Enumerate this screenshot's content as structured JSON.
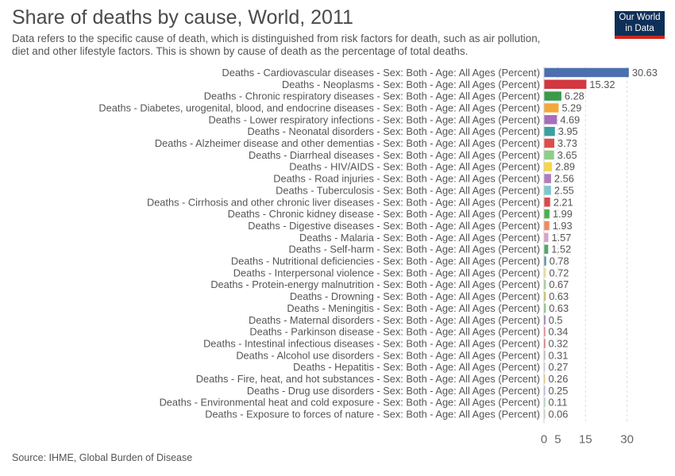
{
  "header": {
    "title": "Share of deaths by cause, World, 2011",
    "subtitle_line1": "Data refers to the specific cause of death, which is distinguished from risk factors for death, such as air pollution,",
    "subtitle_line2": "diet and other lifestyle factors. This is shown by cause of death as the percentage of total deaths."
  },
  "logo": {
    "line1": "Our World",
    "line2": "in Data",
    "bg": "#0e2f57",
    "accent": "#ce261e"
  },
  "footer": {
    "source": "Source: IHME, Global Burden of Disease"
  },
  "chart_data": {
    "type": "bar",
    "orientation": "horizontal",
    "grid": true,
    "xlim": [
      0,
      31
    ],
    "x_ticks": [
      0,
      5,
      15,
      30
    ],
    "categories": [
      "Deaths - Cardiovascular diseases - Sex: Both - Age: All Ages (Percent)",
      "Deaths - Neoplasms - Sex: Both - Age: All Ages (Percent)",
      "Deaths - Chronic respiratory diseases - Sex: Both - Age: All Ages (Percent)",
      "Deaths - Diabetes, urogenital, blood, and endocrine diseases - Sex: Both - Age: All Ages (Percent)",
      "Deaths - Lower respiratory infections - Sex: Both - Age: All Ages (Percent)",
      "Deaths - Neonatal disorders - Sex: Both - Age: All Ages (Percent)",
      "Deaths - Alzheimer disease and other dementias - Sex: Both - Age: All Ages (Percent)",
      "Deaths - Diarrheal diseases - Sex: Both - Age: All Ages (Percent)",
      "Deaths - HIV/AIDS - Sex: Both - Age: All Ages (Percent)",
      "Deaths - Road injuries - Sex: Both - Age: All Ages (Percent)",
      "Deaths - Tuberculosis - Sex: Both - Age: All Ages (Percent)",
      "Deaths - Cirrhosis and other chronic liver diseases - Sex: Both - Age: All Ages (Percent)",
      "Deaths - Chronic kidney disease - Sex: Both - Age: All Ages (Percent)",
      "Deaths - Digestive diseases - Sex: Both - Age: All Ages (Percent)",
      "Deaths - Malaria - Sex: Both - Age: All Ages (Percent)",
      "Deaths - Self-harm - Sex: Both - Age: All Ages (Percent)",
      "Deaths - Nutritional deficiencies - Sex: Both - Age: All Ages (Percent)",
      "Deaths - Interpersonal violence - Sex: Both - Age: All Ages (Percent)",
      "Deaths - Protein-energy malnutrition - Sex: Both - Age: All Ages (Percent)",
      "Deaths - Drowning - Sex: Both - Age: All Ages (Percent)",
      "Deaths - Meningitis - Sex: Both - Age: All Ages (Percent)",
      "Deaths - Maternal disorders - Sex: Both - Age: All Ages (Percent)",
      "Deaths - Parkinson disease - Sex: Both - Age: All Ages (Percent)",
      "Deaths - Intestinal infectious diseases - Sex: Both - Age: All Ages (Percent)",
      "Deaths - Alcohol use disorders - Sex: Both - Age: All Ages (Percent)",
      "Deaths - Hepatitis - Sex: Both - Age: All Ages (Percent)",
      "Deaths - Fire, heat, and hot substances - Sex: Both - Age: All Ages (Percent)",
      "Deaths - Drug use disorders - Sex: Both - Age: All Ages (Percent)",
      "Deaths - Environmental heat and cold exposure - Sex: Both - Age: All Ages (Percent)",
      "Deaths - Exposure to forces of nature - Sex: Both - Age: All Ages (Percent)"
    ],
    "values": [
      30.63,
      15.32,
      6.28,
      5.29,
      4.69,
      3.95,
      3.73,
      3.65,
      2.89,
      2.56,
      2.55,
      2.21,
      1.99,
      1.93,
      1.57,
      1.52,
      0.78,
      0.72,
      0.67,
      0.63,
      0.63,
      0.5,
      0.34,
      0.32,
      0.31,
      0.27,
      0.26,
      0.25,
      0.11,
      0.06
    ],
    "value_labels": [
      "30.63",
      "15.32",
      "6.28",
      "5.29",
      "4.69",
      "3.95",
      "3.73",
      "3.65",
      "2.89",
      "2.56",
      "2.55",
      "2.21",
      "1.99",
      "1.93",
      "1.57",
      "1.52",
      "0.78",
      "0.72",
      "0.67",
      "0.63",
      "0.63",
      "0.5",
      "0.34",
      "0.32",
      "0.31",
      "0.27",
      "0.26",
      "0.25",
      "0.11",
      "0.06"
    ],
    "colors": [
      "#4c6fb0",
      "#d2383f",
      "#3a9a49",
      "#f4a83b",
      "#a86bbd",
      "#3aa0a0",
      "#e04b4b",
      "#8fcd88",
      "#f7d64a",
      "#b17cc0",
      "#7fc7cf",
      "#d94a4a",
      "#4fae4f",
      "#ef8a62",
      "#d9a0c8",
      "#55a868",
      "#5a8fa8",
      "#f2e08a",
      "#9bd08f",
      "#c7c254",
      "#7ec27e",
      "#8a5fa5",
      "#e3505a",
      "#d14040",
      "#a8a8a8",
      "#b8d4e8",
      "#f0c070",
      "#c0a0d0",
      "#a0c8a0",
      "#c8c8c8"
    ]
  }
}
